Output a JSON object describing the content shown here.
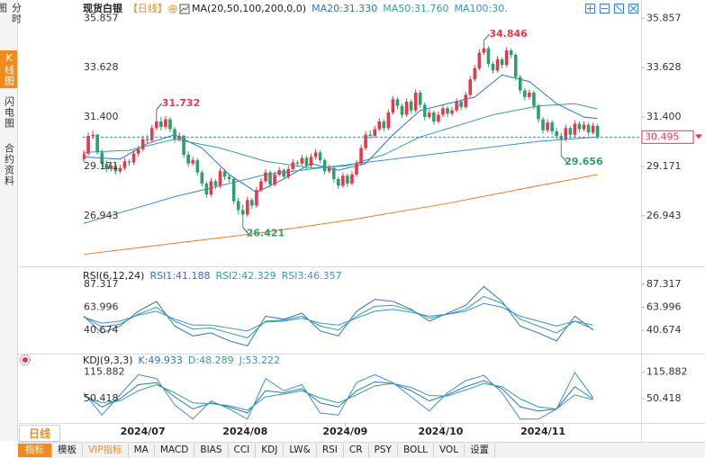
{
  "sidebar": {
    "tabs": [
      "分时图",
      "K线图",
      "闪电图",
      "合约资料"
    ],
    "active": 1
  },
  "period_button": "日线",
  "toolbar": {
    "items": [
      "指标",
      "模板",
      "VIP指标",
      "MA",
      "MACD",
      "BIAS",
      "CCI",
      "KDJ",
      "LW&",
      "RSI",
      "CR",
      "PSY",
      "BOLL",
      "VOL",
      "设置"
    ],
    "active": 0,
    "highlight": 2
  },
  "chart_data": [
    {
      "type": "candlestick",
      "title": "现货白银",
      "period": "【日线】",
      "indicator": "MA(20,50,100,200,0,0)",
      "up_color": "#e8374a",
      "down_color": "#2aa06a",
      "last_price_color": "#3a8ac9",
      "ylim": [
        24.7,
        36.6
      ],
      "yticks": [
        35.857,
        33.628,
        {
          "value": 31.4,
          "label": "31.400"
        },
        29.171,
        26.943
      ],
      "xticks": [
        {
          "value": 13,
          "label": "2024/07"
        },
        {
          "value": 35.5,
          "label": "2024/08"
        },
        {
          "value": 57.5,
          "label": "2024/09"
        },
        {
          "value": 78.5,
          "label": "2024/10"
        },
        {
          "value": 101,
          "label": "2024/11"
        }
      ],
      "high_labels": [
        16,
        88
      ],
      "low_labels": [
        35,
        105
      ],
      "candles": [
        [
          29.5,
          29.9,
          29.35,
          29.75
        ],
        [
          29.75,
          30.7,
          29.65,
          30.55
        ],
        [
          30.55,
          30.8,
          30.4,
          30.6
        ],
        [
          30.6,
          30.65,
          29.7,
          29.8
        ],
        [
          29.8,
          29.95,
          29.15,
          29.3
        ],
        [
          29.3,
          29.45,
          28.9,
          29.05
        ],
        [
          29.05,
          29.35,
          28.95,
          29.2
        ],
        [
          29.2,
          29.3,
          28.8,
          28.95
        ],
        [
          28.95,
          29.25,
          28.85,
          29.1
        ],
        [
          29.1,
          29.55,
          29.0,
          29.4
        ],
        [
          29.4,
          29.5,
          29.2,
          29.35
        ],
        [
          29.35,
          29.9,
          29.25,
          29.75
        ],
        [
          29.75,
          30.1,
          29.6,
          29.95
        ],
        [
          29.95,
          30.55,
          29.85,
          30.4
        ],
        [
          30.4,
          30.6,
          30.2,
          30.35
        ],
        [
          30.35,
          31.05,
          30.25,
          30.9
        ],
        [
          30.9,
          31.732,
          30.8,
          31.2
        ],
        [
          31.2,
          31.4,
          30.8,
          30.95
        ],
        [
          30.95,
          31.45,
          30.85,
          31.3
        ],
        [
          31.3,
          31.4,
          30.7,
          30.85
        ],
        [
          30.85,
          30.95,
          30.25,
          30.4
        ],
        [
          30.4,
          30.7,
          30.3,
          30.55
        ],
        [
          30.55,
          30.6,
          29.55,
          29.7
        ],
        [
          29.7,
          29.85,
          29.15,
          29.3
        ],
        [
          29.3,
          29.6,
          29.2,
          29.45
        ],
        [
          29.45,
          29.55,
          28.75,
          28.9
        ],
        [
          28.9,
          29.0,
          28.25,
          28.4
        ],
        [
          28.4,
          28.5,
          27.75,
          27.9
        ],
        [
          27.9,
          28.65,
          27.8,
          28.5
        ],
        [
          28.5,
          28.6,
          28.15,
          28.3
        ],
        [
          28.3,
          29.1,
          28.2,
          28.95
        ],
        [
          28.95,
          29.05,
          28.55,
          28.7
        ],
        [
          28.7,
          28.85,
          28.45,
          28.6
        ],
        [
          28.6,
          28.7,
          27.45,
          27.6
        ],
        [
          27.6,
          27.75,
          27.0,
          27.2
        ],
        [
          27.2,
          27.45,
          26.421,
          27.0
        ],
        [
          27.0,
          27.8,
          26.9,
          27.65
        ],
        [
          27.65,
          27.75,
          27.25,
          27.4
        ],
        [
          27.4,
          28.25,
          27.3,
          28.1
        ],
        [
          28.1,
          28.65,
          28.0,
          28.5
        ],
        [
          28.5,
          29.05,
          28.4,
          28.9
        ],
        [
          28.9,
          29.0,
          28.2,
          28.35
        ],
        [
          28.35,
          28.95,
          28.25,
          28.8
        ],
        [
          28.8,
          29.15,
          28.7,
          29.0
        ],
        [
          29.0,
          29.1,
          28.6,
          28.7
        ],
        [
          28.7,
          29.2,
          28.6,
          29.05
        ],
        [
          29.05,
          29.5,
          28.95,
          29.35
        ],
        [
          29.35,
          29.45,
          29.15,
          29.3
        ],
        [
          29.3,
          29.7,
          29.2,
          29.55
        ],
        [
          29.55,
          29.65,
          29.05,
          29.2
        ],
        [
          29.2,
          29.75,
          29.1,
          29.6
        ],
        [
          29.6,
          29.95,
          29.5,
          29.8
        ],
        [
          29.8,
          29.9,
          29.3,
          29.45
        ],
        [
          29.45,
          29.55,
          28.8,
          28.95
        ],
        [
          28.95,
          29.25,
          28.85,
          29.1
        ],
        [
          29.1,
          29.2,
          28.45,
          28.6
        ],
        [
          28.6,
          28.7,
          28.15,
          28.3
        ],
        [
          28.3,
          28.9,
          28.2,
          28.75
        ],
        [
          28.75,
          28.85,
          28.25,
          28.4
        ],
        [
          28.4,
          28.95,
          28.3,
          28.8
        ],
        [
          28.8,
          29.45,
          28.7,
          29.3
        ],
        [
          29.3,
          30.15,
          29.2,
          30.0
        ],
        [
          30.0,
          30.75,
          29.9,
          30.6
        ],
        [
          30.6,
          30.8,
          30.4,
          30.55
        ],
        [
          30.55,
          31.0,
          30.45,
          30.85
        ],
        [
          30.85,
          31.35,
          30.75,
          31.2
        ],
        [
          31.2,
          31.3,
          30.75,
          30.9
        ],
        [
          30.9,
          31.75,
          30.8,
          31.6
        ],
        [
          31.6,
          32.35,
          31.5,
          32.2
        ],
        [
          32.2,
          32.3,
          31.75,
          31.9
        ],
        [
          31.9,
          32.0,
          31.35,
          31.5
        ],
        [
          31.5,
          32.25,
          31.4,
          32.1
        ],
        [
          32.1,
          32.2,
          31.55,
          31.7
        ],
        [
          31.7,
          32.65,
          31.6,
          32.5
        ],
        [
          32.5,
          32.6,
          31.8,
          31.95
        ],
        [
          31.95,
          32.05,
          31.25,
          31.4
        ],
        [
          31.4,
          31.75,
          31.3,
          31.6
        ],
        [
          31.6,
          31.7,
          31.05,
          31.2
        ],
        [
          31.2,
          31.65,
          31.1,
          31.5
        ],
        [
          31.5,
          31.95,
          31.4,
          31.8
        ],
        [
          31.8,
          31.9,
          31.4,
          31.55
        ],
        [
          31.55,
          31.85,
          31.45,
          31.7
        ],
        [
          31.7,
          32.25,
          31.6,
          32.1
        ],
        [
          32.1,
          32.2,
          31.7,
          31.85
        ],
        [
          31.85,
          32.55,
          31.75,
          32.4
        ],
        [
          32.4,
          33.25,
          32.3,
          33.1
        ],
        [
          33.1,
          33.75,
          33.0,
          33.6
        ],
        [
          33.6,
          34.45,
          33.5,
          34.3
        ],
        [
          34.3,
          34.846,
          34.2,
          34.5
        ],
        [
          34.5,
          34.6,
          33.65,
          33.8
        ],
        [
          33.8,
          33.9,
          33.35,
          33.5
        ],
        [
          33.5,
          34.15,
          33.4,
          34.0
        ],
        [
          34.0,
          34.1,
          33.6,
          33.75
        ],
        [
          33.75,
          34.55,
          33.65,
          34.4
        ],
        [
          34.4,
          34.5,
          34.05,
          34.2
        ],
        [
          34.2,
          34.3,
          33.05,
          33.2
        ],
        [
          33.2,
          33.3,
          32.45,
          32.6
        ],
        [
          32.6,
          32.7,
          32.15,
          32.3
        ],
        [
          32.3,
          32.65,
          32.2,
          32.5
        ],
        [
          32.5,
          32.6,
          31.75,
          31.9
        ],
        [
          31.9,
          32.0,
          31.15,
          31.3
        ],
        [
          31.3,
          31.4,
          30.65,
          30.8
        ],
        [
          30.8,
          31.3,
          30.7,
          31.15
        ],
        [
          31.15,
          31.25,
          30.6,
          30.75
        ],
        [
          30.75,
          30.9,
          30.4,
          30.55
        ],
        [
          30.55,
          30.7,
          29.656,
          30.4
        ],
        [
          30.4,
          31.05,
          30.3,
          30.9
        ],
        [
          30.9,
          31.0,
          30.45,
          30.6
        ],
        [
          30.6,
          31.25,
          30.5,
          31.1
        ],
        [
          31.1,
          31.2,
          30.7,
          30.85
        ],
        [
          30.85,
          31.2,
          30.75,
          31.05
        ],
        [
          31.05,
          31.15,
          30.55,
          30.7
        ],
        [
          30.7,
          31.15,
          30.6,
          31.0
        ],
        [
          31.0,
          31.1,
          30.4,
          30.495
        ]
      ],
      "series": [
        {
          "name": "MA20:31.330",
          "color": "#2f6fd6",
          "x": [
            0,
            8,
            14,
            20,
            26,
            32,
            38,
            44,
            50,
            56,
            62,
            68,
            74,
            80,
            86,
            92,
            98,
            104,
            110,
            113
          ],
          "values": [
            29.6,
            29.5,
            30.2,
            30.6,
            30.0,
            28.8,
            28.0,
            28.6,
            29.3,
            29.0,
            29.3,
            30.6,
            31.7,
            32.0,
            32.3,
            33.3,
            33.0,
            32.0,
            31.4,
            31.33
          ]
        },
        {
          "name": "MA50:31.760",
          "color": "#2ca58d",
          "x": [
            0,
            10,
            20,
            30,
            40,
            50,
            58,
            66,
            74,
            82,
            90,
            100,
            108,
            113
          ],
          "values": [
            29.8,
            29.9,
            30.4,
            30.0,
            29.4,
            29.1,
            29.2,
            29.7,
            30.5,
            31.0,
            31.5,
            31.9,
            32.0,
            31.76
          ]
        },
        {
          "name": "MA100:30.",
          "color": "#3b8fd8",
          "x": [
            0,
            20,
            40,
            60,
            80,
            100,
            113
          ],
          "values": [
            26.6,
            27.8,
            28.8,
            29.3,
            29.8,
            30.3,
            30.5
          ]
        },
        {
          "color": "#f07b22",
          "x": [
            0,
            20,
            40,
            60,
            80,
            100,
            113
          ],
          "values": [
            25.2,
            25.7,
            26.2,
            26.8,
            27.5,
            28.3,
            28.8
          ]
        }
      ]
    },
    {
      "type": "line",
      "title": "RSI(6,12,24)",
      "ylim": [
        18,
        100
      ],
      "yticks": [
        87.317,
        63.996,
        40.674
      ],
      "x": [
        0,
        4,
        8,
        12,
        16,
        20,
        24,
        28,
        32,
        36,
        40,
        44,
        48,
        52,
        56,
        60,
        64,
        68,
        72,
        76,
        80,
        84,
        88,
        92,
        96,
        100,
        104,
        108,
        112
      ],
      "series": [
        {
          "name": "RSI1:41.188",
          "color": "#2f6fd6",
          "values": [
            55,
            38,
            45,
            60,
            70,
            45,
            35,
            38,
            30,
            25,
            55,
            52,
            58,
            40,
            35,
            60,
            72,
            70,
            62,
            50,
            58,
            66,
            85,
            70,
            45,
            38,
            30,
            55,
            41
          ]
        },
        {
          "name": "RSI2:42.329",
          "color": "#2ca58d",
          "values": [
            55,
            44,
            47,
            57,
            64,
            50,
            42,
            43,
            38,
            33,
            50,
            51,
            55,
            45,
            41,
            55,
            65,
            66,
            61,
            53,
            57,
            62,
            75,
            68,
            52,
            45,
            38,
            50,
            42
          ]
        },
        {
          "name": "RSI3:46.357",
          "color": "#3b8fd8",
          "values": [
            54,
            48,
            50,
            56,
            60,
            52,
            46,
            46,
            43,
            40,
            49,
            50,
            53,
            48,
            46,
            53,
            60,
            62,
            59,
            55,
            57,
            60,
            68,
            64,
            55,
            50,
            45,
            50,
            46
          ]
        }
      ]
    },
    {
      "type": "line",
      "title": "KDJ(9,3,3)",
      "ylim": [
        -5,
        155
      ],
      "yticks": [
        115.882,
        50.418
      ],
      "x": [
        0,
        4,
        8,
        12,
        16,
        20,
        24,
        28,
        32,
        36,
        40,
        44,
        48,
        52,
        56,
        60,
        64,
        68,
        72,
        76,
        80,
        84,
        88,
        92,
        96,
        100,
        104,
        108,
        112
      ],
      "series": [
        {
          "name": "K:49.933",
          "color": "#2f6fd6",
          "values": [
            60,
            30,
            50,
            85,
            90,
            55,
            25,
            40,
            30,
            15,
            70,
            65,
            75,
            40,
            30,
            70,
            92,
            88,
            70,
            45,
            60,
            80,
            95,
            75,
            30,
            20,
            25,
            80,
            50
          ]
        },
        {
          "name": "D:48.289",
          "color": "#2ca58d",
          "values": [
            58,
            40,
            45,
            70,
            85,
            65,
            40,
            38,
            33,
            22,
            55,
            62,
            70,
            52,
            40,
            60,
            82,
            88,
            78,
            58,
            57,
            72,
            88,
            80,
            50,
            30,
            25,
            60,
            48
          ]
        },
        {
          "name": "J:53.222",
          "color": "#3b8fd8",
          "values": [
            65,
            10,
            60,
            110,
            100,
            35,
            0,
            45,
            25,
            0,
            100,
            70,
            85,
            15,
            10,
            90,
            110,
            90,
            55,
            20,
            65,
            95,
            108,
            65,
            0,
            0,
            25,
            115,
            53
          ]
        }
      ]
    }
  ]
}
